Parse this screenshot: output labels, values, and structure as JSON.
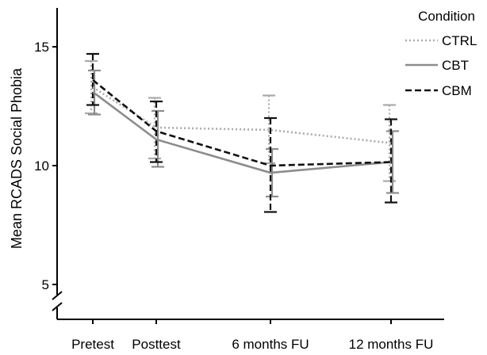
{
  "chart_data": {
    "type": "line",
    "title": "",
    "ylabel": "Mean RCADS Social Phobia",
    "xlabel": "",
    "categories": [
      "Pretest",
      "Posttest",
      "6 months FU",
      "12 months FU"
    ],
    "x_positions": [
      0,
      1,
      2.8,
      4.7
    ],
    "ylim": [
      4,
      16.7
    ],
    "yticks": [
      5,
      10,
      15
    ],
    "ytick_labels": [
      "5",
      "10",
      "15"
    ],
    "axis_break": true,
    "grid": false,
    "legend": {
      "title": "Condition",
      "position": "top-right"
    },
    "series": [
      {
        "name": "CTRL",
        "color": "#aaaaaa",
        "style": "dotted",
        "values": [
          13.3,
          11.6,
          11.5,
          10.95
        ],
        "err_low": [
          12.2,
          10.3,
          10.1,
          9.35
        ],
        "err_high": [
          14.4,
          12.85,
          12.95,
          12.55
        ]
      },
      {
        "name": "CBT",
        "color": "#8c8c8c",
        "style": "solid",
        "values": [
          13.1,
          11.1,
          9.7,
          10.15
        ],
        "err_low": [
          12.15,
          9.95,
          8.7,
          8.85
        ],
        "err_high": [
          14.0,
          12.3,
          10.7,
          11.45
        ]
      },
      {
        "name": "CBM",
        "color": "#111111",
        "style": "dashed",
        "values": [
          13.6,
          11.45,
          10.0,
          10.15
        ],
        "err_low": [
          12.55,
          10.15,
          8.05,
          8.45
        ],
        "err_high": [
          14.7,
          12.7,
          12.0,
          11.95
        ]
      }
    ]
  }
}
